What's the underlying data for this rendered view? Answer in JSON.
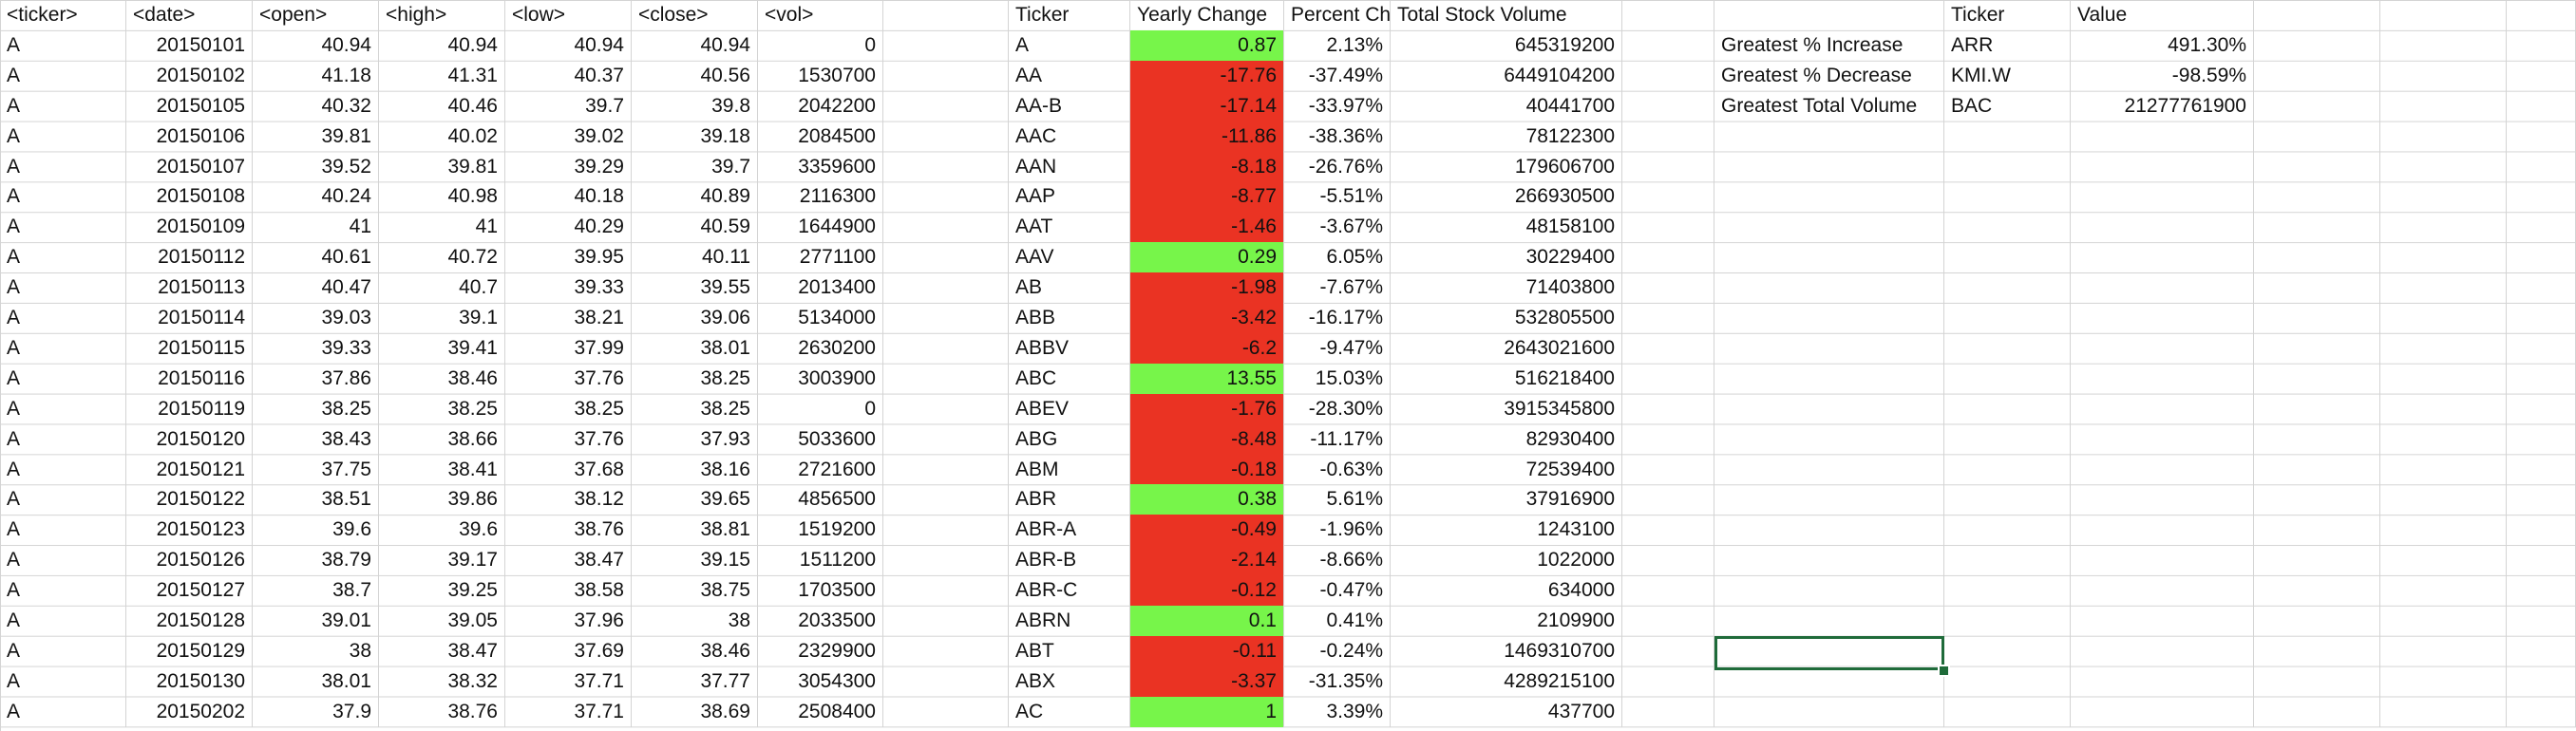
{
  "raw_headers": [
    "<ticker>",
    "<date>",
    "<open>",
    "<high>",
    "<low>",
    "<close>",
    "<vol>"
  ],
  "raw_rows": [
    [
      "A",
      "20150101",
      "40.94",
      "40.94",
      "40.94",
      "40.94",
      "0"
    ],
    [
      "A",
      "20150102",
      "41.18",
      "41.31",
      "40.37",
      "40.56",
      "1530700"
    ],
    [
      "A",
      "20150105",
      "40.32",
      "40.46",
      "39.7",
      "39.8",
      "2042200"
    ],
    [
      "A",
      "20150106",
      "39.81",
      "40.02",
      "39.02",
      "39.18",
      "2084500"
    ],
    [
      "A",
      "20150107",
      "39.52",
      "39.81",
      "39.29",
      "39.7",
      "3359600"
    ],
    [
      "A",
      "20150108",
      "40.24",
      "40.98",
      "40.18",
      "40.89",
      "2116300"
    ],
    [
      "A",
      "20150109",
      "41",
      "41",
      "40.29",
      "40.59",
      "1644900"
    ],
    [
      "A",
      "20150112",
      "40.61",
      "40.72",
      "39.95",
      "40.11",
      "2771100"
    ],
    [
      "A",
      "20150113",
      "40.47",
      "40.7",
      "39.33",
      "39.55",
      "2013400"
    ],
    [
      "A",
      "20150114",
      "39.03",
      "39.1",
      "38.21",
      "39.06",
      "5134000"
    ],
    [
      "A",
      "20150115",
      "39.33",
      "39.41",
      "37.99",
      "38.01",
      "2630200"
    ],
    [
      "A",
      "20150116",
      "37.86",
      "38.46",
      "37.76",
      "38.25",
      "3003900"
    ],
    [
      "A",
      "20150119",
      "38.25",
      "38.25",
      "38.25",
      "38.25",
      "0"
    ],
    [
      "A",
      "20150120",
      "38.43",
      "38.66",
      "37.76",
      "37.93",
      "5033600"
    ],
    [
      "A",
      "20150121",
      "37.75",
      "38.41",
      "37.68",
      "38.16",
      "2721600"
    ],
    [
      "A",
      "20150122",
      "38.51",
      "39.86",
      "38.12",
      "39.65",
      "4856500"
    ],
    [
      "A",
      "20150123",
      "39.6",
      "39.6",
      "38.76",
      "38.81",
      "1519200"
    ],
    [
      "A",
      "20150126",
      "38.79",
      "39.17",
      "38.47",
      "39.15",
      "1511200"
    ],
    [
      "A",
      "20150127",
      "38.7",
      "39.25",
      "38.58",
      "38.75",
      "1703500"
    ],
    [
      "A",
      "20150128",
      "39.01",
      "39.05",
      "37.96",
      "38",
      "2033500"
    ],
    [
      "A",
      "20150129",
      "38",
      "38.47",
      "37.69",
      "38.46",
      "2329900"
    ],
    [
      "A",
      "20150130",
      "38.01",
      "38.32",
      "37.71",
      "37.77",
      "3054300"
    ],
    [
      "A",
      "20150202",
      "37.9",
      "38.76",
      "37.71",
      "38.69",
      "2508400"
    ]
  ],
  "summary_headers": [
    "Ticker",
    "Yearly Change",
    "Percent Change",
    "Total Stock Volume"
  ],
  "summary_rows": [
    [
      "A",
      "0.87",
      "2.13%",
      "645319200",
      "pos"
    ],
    [
      "AA",
      "-17.76",
      "-37.49%",
      "6449104200",
      "neg"
    ],
    [
      "AA-B",
      "-17.14",
      "-33.97%",
      "40441700",
      "neg"
    ],
    [
      "AAC",
      "-11.86",
      "-38.36%",
      "78122300",
      "neg"
    ],
    [
      "AAN",
      "-8.18",
      "-26.76%",
      "179606700",
      "neg"
    ],
    [
      "AAP",
      "-8.77",
      "-5.51%",
      "266930500",
      "neg"
    ],
    [
      "AAT",
      "-1.46",
      "-3.67%",
      "48158100",
      "neg"
    ],
    [
      "AAV",
      "0.29",
      "6.05%",
      "30229400",
      "pos"
    ],
    [
      "AB",
      "-1.98",
      "-7.67%",
      "71403800",
      "neg"
    ],
    [
      "ABB",
      "-3.42",
      "-16.17%",
      "532805500",
      "neg"
    ],
    [
      "ABBV",
      "-6.2",
      "-9.47%",
      "2643021600",
      "neg"
    ],
    [
      "ABC",
      "13.55",
      "15.03%",
      "516218400",
      "pos"
    ],
    [
      "ABEV",
      "-1.76",
      "-28.30%",
      "3915345800",
      "neg"
    ],
    [
      "ABG",
      "-8.48",
      "-11.17%",
      "82930400",
      "neg"
    ],
    [
      "ABM",
      "-0.18",
      "-0.63%",
      "72539400",
      "neg"
    ],
    [
      "ABR",
      "0.38",
      "5.61%",
      "37916900",
      "pos"
    ],
    [
      "ABR-A",
      "-0.49",
      "-1.96%",
      "1243100",
      "neg"
    ],
    [
      "ABR-B",
      "-2.14",
      "-8.66%",
      "1022000",
      "neg"
    ],
    [
      "ABR-C",
      "-0.12",
      "-0.47%",
      "634000",
      "neg"
    ],
    [
      "ABRN",
      "0.1",
      "0.41%",
      "2109900",
      "pos"
    ],
    [
      "ABT",
      "-0.11",
      "-0.24%",
      "1469310700",
      "neg"
    ],
    [
      "ABX",
      "-3.37",
      "-31.35%",
      "4289215100",
      "neg"
    ],
    [
      "AC",
      "1",
      "3.39%",
      "437700",
      "pos"
    ]
  ],
  "greatest_headers": [
    "",
    "Ticker",
    "Value"
  ],
  "greatest_rows": [
    [
      "Greatest % Increase",
      "ARR",
      "491.30%"
    ],
    [
      "Greatest % Decrease",
      "KMI.W",
      "-98.59%"
    ],
    [
      "Greatest Total Volume",
      "BAC",
      "21277761900"
    ]
  ],
  "colors": {
    "positive": "#77f54a",
    "negative": "#ea3323",
    "selection": "#1f6b3a"
  }
}
